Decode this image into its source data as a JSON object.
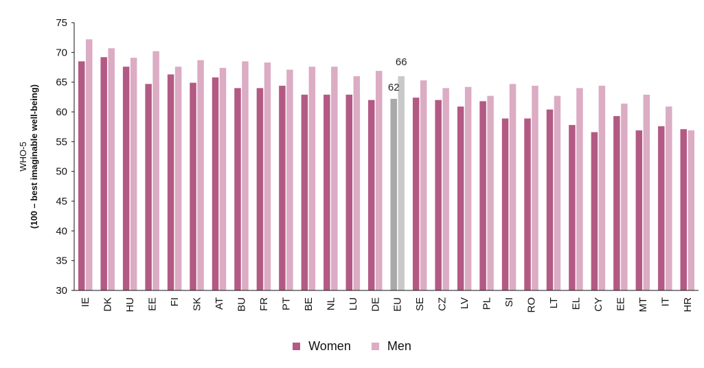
{
  "colors": {
    "women": "#b35a84",
    "men": "#dbacc3",
    "eu_women": "#a9a9a9",
    "eu_men": "#c9c9c9",
    "axis": "#111111"
  },
  "chart_data": {
    "type": "bar",
    "ylabel_line1": "WHO-5",
    "ylabel_line2": "(100 – best imaginable well-being)",
    "ylim": [
      30,
      75
    ],
    "yticks": [
      30,
      35,
      40,
      45,
      50,
      55,
      60,
      65,
      70,
      75
    ],
    "categories": [
      "IE",
      "DK",
      "HU",
      "EE",
      "FI",
      "SK",
      "AT",
      "BU",
      "FR",
      "PT",
      "BE",
      "NL",
      "LU",
      "DE",
      "EU",
      "SE",
      "CZ",
      "LV",
      "PL",
      "SI",
      "RO",
      "LT",
      "EL",
      "CY",
      "EE",
      "MT",
      "IT",
      "HR"
    ],
    "highlight_category": "EU",
    "series": [
      {
        "name": "Women",
        "values": [
          68.5,
          69.2,
          67.6,
          64.7,
          66.3,
          64.9,
          65.8,
          64.0,
          64.0,
          64.4,
          62.9,
          62.9,
          62.9,
          62.0,
          62.2,
          62.4,
          62.0,
          60.9,
          61.8,
          58.9,
          58.9,
          60.4,
          57.8,
          56.6,
          59.3,
          56.9,
          57.6,
          57.1
        ]
      },
      {
        "name": "Men",
        "values": [
          72.2,
          70.7,
          69.1,
          70.2,
          67.6,
          68.7,
          67.4,
          68.5,
          68.3,
          67.1,
          67.6,
          67.6,
          66.0,
          66.9,
          66.0,
          65.3,
          64.0,
          64.2,
          62.7,
          64.7,
          64.4,
          62.7,
          64.0,
          64.4,
          61.4,
          62.9,
          60.9,
          56.9
        ]
      }
    ],
    "data_labels": [
      {
        "category": "EU",
        "series": "Women",
        "text": "62"
      },
      {
        "category": "EU",
        "series": "Men",
        "text": "66"
      }
    ],
    "legend_position": "bottom-center"
  }
}
